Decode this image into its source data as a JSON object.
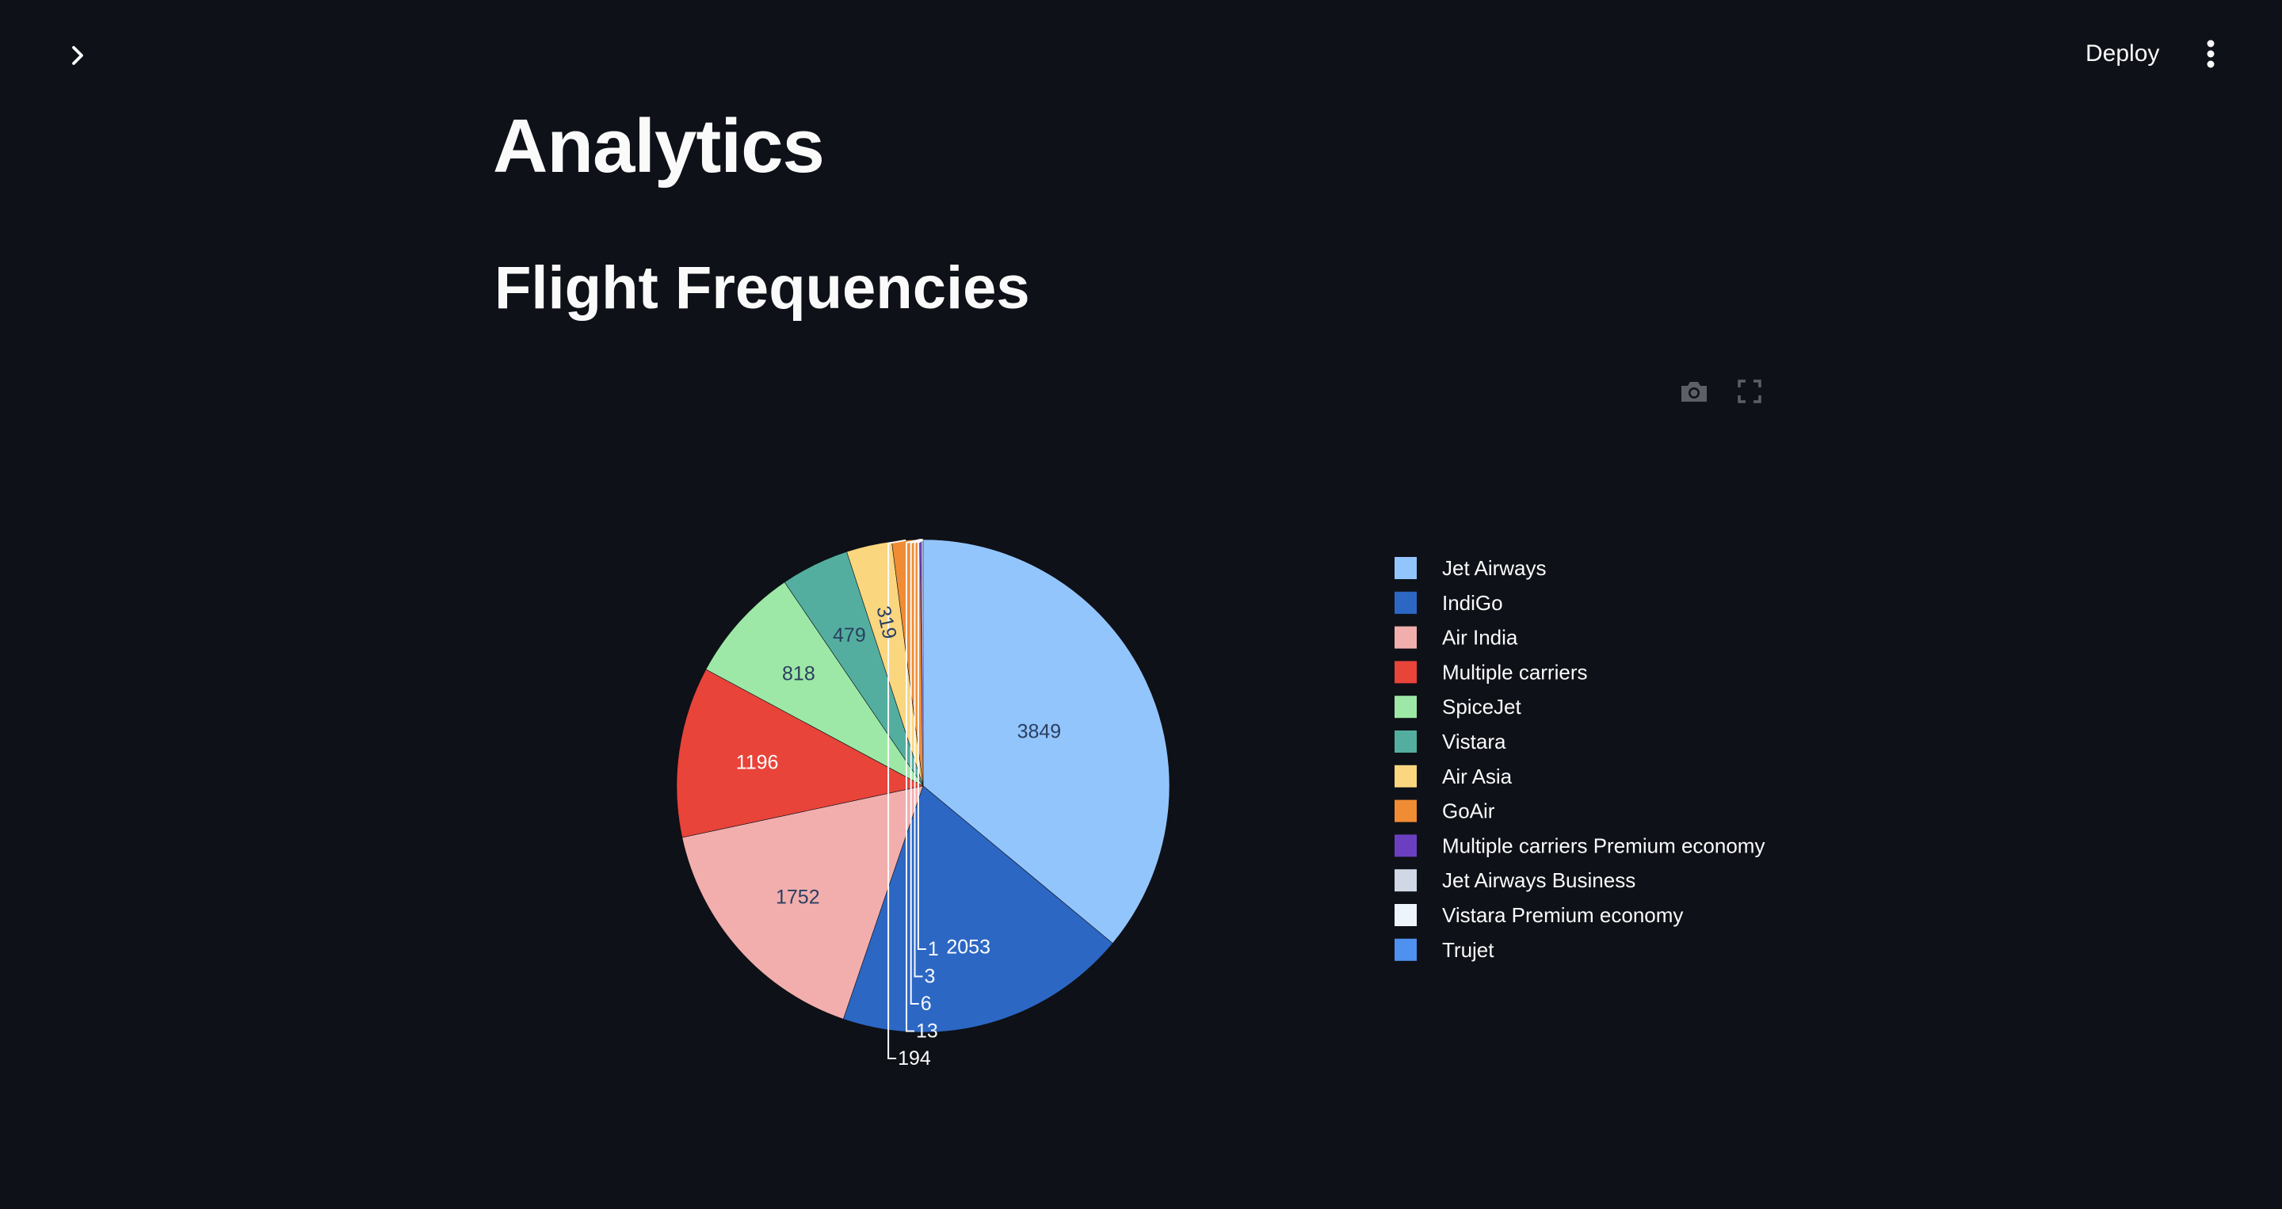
{
  "header": {
    "deploy_label": "Deploy",
    "sidebar_toggle_icon": "chevron-right-icon",
    "menu_icon": "more-vertical-icon"
  },
  "main": {
    "title": "Analytics",
    "section_title": "Flight Frequencies"
  },
  "chart_toolbar": {
    "icons": [
      "camera-icon",
      "fullscreen-icon"
    ]
  },
  "chart_data": {
    "type": "pie",
    "title": "",
    "legend_placement": "right",
    "series": [
      {
        "name": "Jet Airways",
        "value": 3849,
        "color": "#93c5fd",
        "text_color": "#2a3f5f"
      },
      {
        "name": "IndiGo",
        "value": 2053,
        "color": "#2c67c4",
        "text_color": "#ffffff"
      },
      {
        "name": "Air India",
        "value": 1752,
        "color": "#f2aead",
        "text_color": "#2a3f5f"
      },
      {
        "name": "Multiple carriers",
        "value": 1196,
        "color": "#e8443a",
        "text_color": "#ffffff"
      },
      {
        "name": "SpiceJet",
        "value": 818,
        "color": "#9de8a6",
        "text_color": "#2a3f5f"
      },
      {
        "name": "Vistara",
        "value": 479,
        "color": "#53aea0",
        "text_color": "#2a3f5f"
      },
      {
        "name": "Air Asia",
        "value": 319,
        "color": "#fad67f",
        "text_color": "#2a3f5f"
      },
      {
        "name": "GoAir",
        "value": 194,
        "color": "#f08c34",
        "text_color": "#fafafa"
      },
      {
        "name": "Multiple carriers Premium economy",
        "value": 13,
        "color": "#6b3fc0",
        "text_color": "#fafafa"
      },
      {
        "name": "Jet Airways Business",
        "value": 6,
        "color": "#cfd8e4",
        "text_color": "#fafafa"
      },
      {
        "name": "Vistara Premium economy",
        "value": 3,
        "color": "#eef4fc",
        "text_color": "#fafafa"
      },
      {
        "name": "Trujet",
        "value": 1,
        "color": "#4e91f0",
        "text_color": "#fafafa"
      }
    ]
  }
}
